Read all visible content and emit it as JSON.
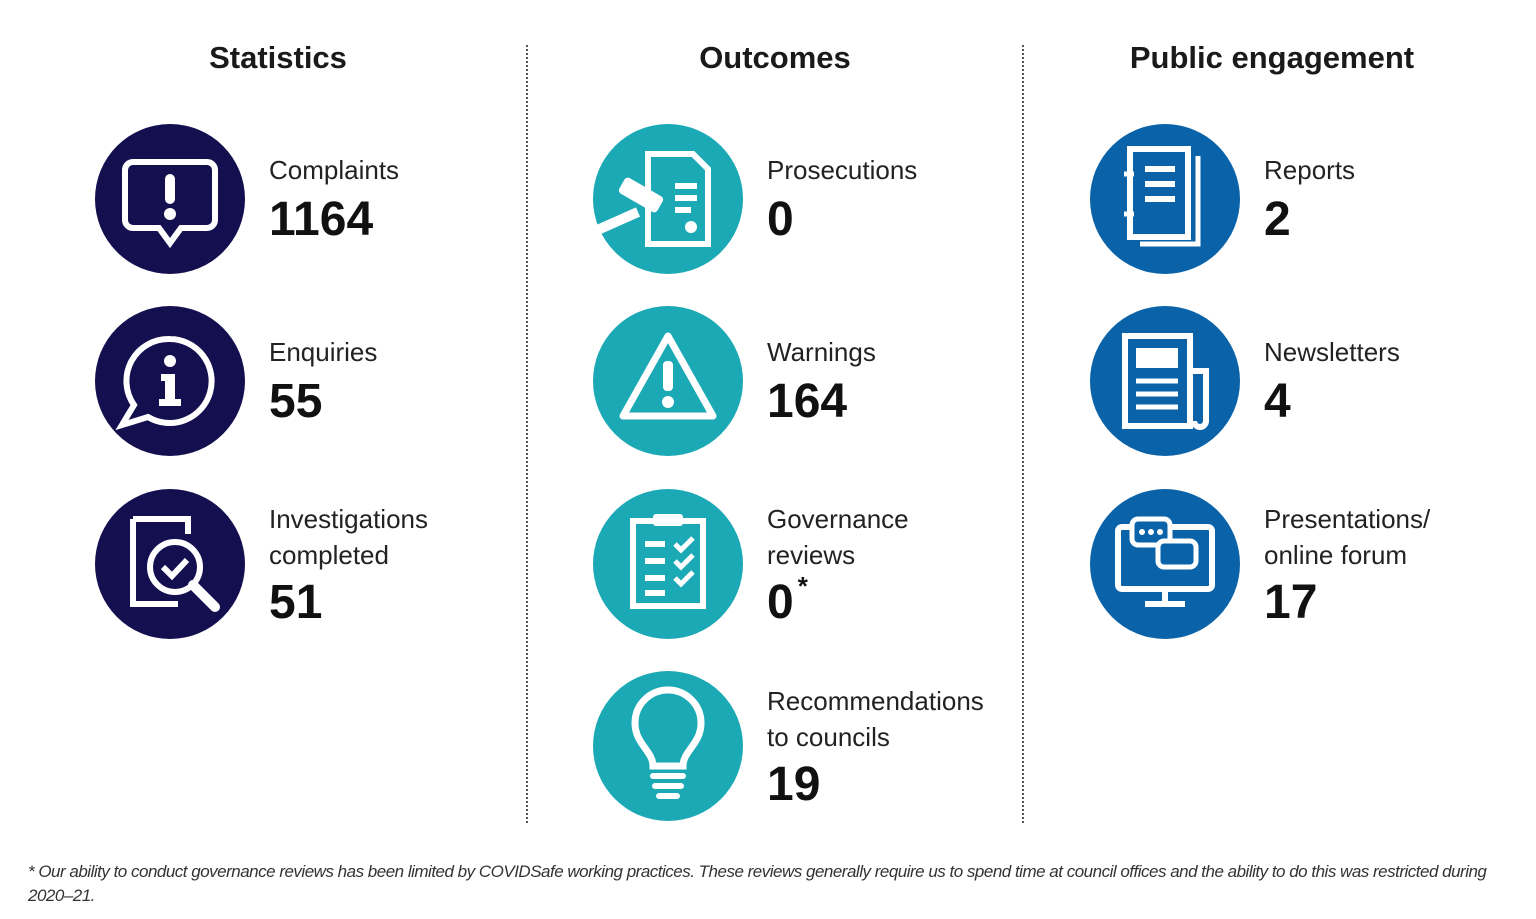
{
  "colors": {
    "statistics": "#140f4f",
    "outcomes": "#1aa9b5",
    "engagement": "#0a62a8"
  },
  "columns": [
    {
      "heading": "Statistics",
      "items": [
        {
          "icon": "alert-speech-bubble-icon",
          "label": "Complaints",
          "value": "1164"
        },
        {
          "icon": "info-speech-bubble-icon",
          "label": "Enquiries",
          "value": "55"
        },
        {
          "icon": "document-magnifier-check-icon",
          "label": "Investigations\ncompleted",
          "value": "51"
        }
      ]
    },
    {
      "heading": "Outcomes",
      "items": [
        {
          "icon": "gavel-document-icon",
          "label": "Prosecutions",
          "value": "0"
        },
        {
          "icon": "warning-triangle-icon",
          "label": "Warnings",
          "value": "164"
        },
        {
          "icon": "clipboard-checklist-icon",
          "label": "Governance\nreviews",
          "value": "0",
          "marker": "*"
        },
        {
          "icon": "lightbulb-icon",
          "label": "Recommendations\nto councils",
          "value": "19"
        }
      ]
    },
    {
      "heading": "Public engagement",
      "items": [
        {
          "icon": "report-book-icon",
          "label": "Reports",
          "value": "2"
        },
        {
          "icon": "newspaper-icon",
          "label": "Newsletters",
          "value": "4"
        },
        {
          "icon": "monitor-chat-icon",
          "label": "Presentations/\nonline forum",
          "value": "17"
        }
      ]
    }
  ],
  "footnote": "* Our ability to conduct governance reviews has been limited by COVIDSafe working practices. These reviews generally require us to spend time at council offices and the ability to do this was restricted during 2020–21."
}
